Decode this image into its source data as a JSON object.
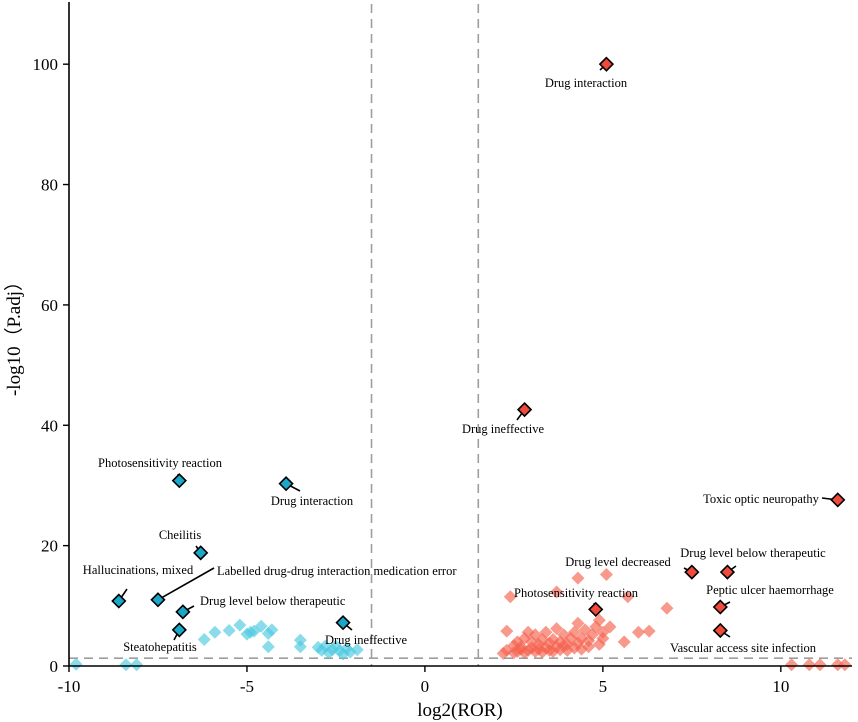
{
  "chart_data": {
    "type": "scatter",
    "title": "",
    "xlabel": "log2(ROR)",
    "ylabel": "-log10（P.adj）",
    "xlim": [
      -10,
      12
    ],
    "ylim": [
      0,
      110
    ],
    "xticks": [
      -10,
      -5,
      0,
      5,
      10
    ],
    "yticks": [
      0,
      20,
      40,
      60,
      80,
      100
    ],
    "grid": false,
    "legend": "none",
    "thresholds": {
      "x": [
        -1.5,
        1.5
      ],
      "y": [
        1.3
      ]
    },
    "colors": {
      "down_faded": "#4cc9e0",
      "down_highlight": "#1aa8c8",
      "up_faded": "#f5624f",
      "up_highlight": "#ef4a3a",
      "outline": "#000000",
      "threshold_line": "#9e9e9e"
    },
    "series": [
      {
        "name": "down_all",
        "points": [
          [
            -6.2,
            4.4
          ],
          [
            -5.9,
            5.6
          ],
          [
            -5.5,
            5.9
          ],
          [
            -5.2,
            6.8
          ],
          [
            -5.0,
            5.3
          ],
          [
            -4.9,
            5.6
          ],
          [
            -4.8,
            5.8
          ],
          [
            -4.6,
            6.6
          ],
          [
            -4.4,
            3.2
          ],
          [
            -4.4,
            5.4
          ],
          [
            -4.3,
            6.0
          ],
          [
            -3.5,
            3.2
          ],
          [
            -3.5,
            4.3
          ],
          [
            -3.0,
            3.1
          ],
          [
            -2.9,
            2.6
          ],
          [
            -2.8,
            3.3
          ],
          [
            -2.7,
            2.2
          ],
          [
            -2.6,
            2.7
          ],
          [
            -2.5,
            3.3
          ],
          [
            -2.4,
            2.5
          ],
          [
            -2.3,
            2.0
          ],
          [
            -2.2,
            2.9
          ],
          [
            -2.1,
            2.3
          ],
          [
            -1.9,
            2.7
          ],
          [
            -9.8,
            0.3
          ],
          [
            -8.4,
            0.2
          ],
          [
            -8.1,
            0.2
          ]
        ]
      },
      {
        "name": "up_all",
        "points": [
          [
            2.2,
            2.1
          ],
          [
            2.3,
            2.6
          ],
          [
            2.3,
            5.8
          ],
          [
            2.4,
            11.5
          ],
          [
            2.5,
            2.2
          ],
          [
            2.5,
            3.4
          ],
          [
            2.6,
            2.4
          ],
          [
            2.6,
            4.0
          ],
          [
            2.7,
            2.8
          ],
          [
            2.7,
            3.2
          ],
          [
            2.8,
            2.2
          ],
          [
            2.8,
            4.6
          ],
          [
            2.9,
            2.6
          ],
          [
            2.9,
            5.6
          ],
          [
            3.0,
            3.0
          ],
          [
            3.0,
            4.0
          ],
          [
            3.1,
            2.4
          ],
          [
            3.1,
            5.2
          ],
          [
            3.2,
            2.8
          ],
          [
            3.2,
            3.6
          ],
          [
            3.3,
            2.3
          ],
          [
            3.3,
            4.4
          ],
          [
            3.4,
            3.0
          ],
          [
            3.4,
            5.6
          ],
          [
            3.5,
            2.6
          ],
          [
            3.5,
            3.8
          ],
          [
            3.6,
            2.4
          ],
          [
            3.6,
            4.4
          ],
          [
            3.7,
            3.2
          ],
          [
            3.7,
            6.2
          ],
          [
            3.7,
            12.3
          ],
          [
            3.8,
            2.7
          ],
          [
            3.8,
            4.0
          ],
          [
            3.9,
            3.4
          ],
          [
            3.9,
            5.2
          ],
          [
            4.0,
            2.6
          ],
          [
            4.0,
            3.6
          ],
          [
            4.1,
            4.6
          ],
          [
            4.2,
            3.0
          ],
          [
            4.2,
            5.6
          ],
          [
            4.3,
            3.8
          ],
          [
            4.3,
            7.1
          ],
          [
            4.3,
            14.6
          ],
          [
            4.4,
            2.8
          ],
          [
            4.4,
            4.6
          ],
          [
            4.5,
            6.0
          ],
          [
            4.6,
            3.2
          ],
          [
            4.6,
            4.2
          ],
          [
            4.7,
            5.2
          ],
          [
            4.8,
            6.5
          ],
          [
            4.9,
            3.6
          ],
          [
            4.9,
            7.6
          ],
          [
            5.0,
            4.6
          ],
          [
            5.0,
            5.6
          ],
          [
            5.1,
            15.2
          ],
          [
            5.2,
            6.5
          ],
          [
            5.6,
            4.0
          ],
          [
            5.7,
            11.5
          ],
          [
            6.0,
            5.6
          ],
          [
            6.3,
            5.8
          ],
          [
            6.8,
            9.6
          ],
          [
            10.3,
            0.2
          ],
          [
            10.8,
            0.2
          ],
          [
            11.1,
            0.2
          ],
          [
            11.6,
            0.2
          ],
          [
            11.8,
            0.2
          ]
        ]
      }
    ],
    "highlights": [
      {
        "label": "Photosensitivity reaction",
        "x": -6.9,
        "y": 30.8,
        "group": "down"
      },
      {
        "label": "Drug interaction",
        "x": -3.9,
        "y": 30.3,
        "group": "down"
      },
      {
        "label": "Cheilitis",
        "x": -6.3,
        "y": 18.8,
        "group": "down"
      },
      {
        "label": "Hallucinations, mixed",
        "x": -8.6,
        "y": 10.8,
        "group": "down"
      },
      {
        "label": "Labelled drug-drug interaction medication error",
        "x": -7.5,
        "y": 11.0,
        "group": "down"
      },
      {
        "label": "Drug level below therapeutic",
        "x": -6.8,
        "y": 9.0,
        "group": "down"
      },
      {
        "label": "Steatohepatitis",
        "x": -6.9,
        "y": 6.0,
        "group": "down"
      },
      {
        "label": "Drug ineffective",
        "x": -2.3,
        "y": 7.2,
        "group": "down"
      },
      {
        "label": "Drug interaction",
        "x": 5.1,
        "y": 100.0,
        "group": "up"
      },
      {
        "label": "Drug ineffective",
        "x": 2.8,
        "y": 42.6,
        "group": "up"
      },
      {
        "label": "Toxic optic neuropathy",
        "x": 11.6,
        "y": 27.6,
        "group": "up"
      },
      {
        "label": "Drug level decreased",
        "x": 7.5,
        "y": 15.6,
        "group": "up"
      },
      {
        "label": "Drug level below therapeutic",
        "x": 8.5,
        "y": 15.6,
        "group": "up"
      },
      {
        "label": "Peptic ulcer haemorrhage",
        "x": 8.3,
        "y": 9.8,
        "group": "up"
      },
      {
        "label": "Photosensitivity reaction",
        "x": 4.8,
        "y": 9.4,
        "group": "up"
      },
      {
        "label": "Vascular access site infection",
        "x": 8.3,
        "y": 5.9,
        "group": "up"
      }
    ]
  }
}
